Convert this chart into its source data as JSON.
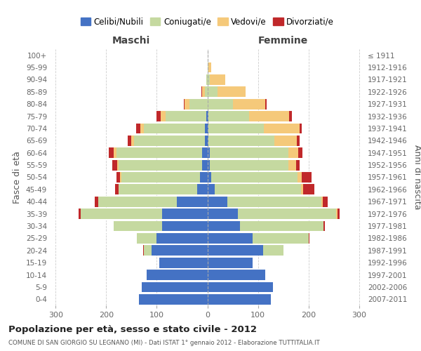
{
  "age_groups": [
    "0-4",
    "5-9",
    "10-14",
    "15-19",
    "20-24",
    "25-29",
    "30-34",
    "35-39",
    "40-44",
    "45-49",
    "50-54",
    "55-59",
    "60-64",
    "65-69",
    "70-74",
    "75-79",
    "80-84",
    "85-89",
    "90-94",
    "95-99",
    "100+"
  ],
  "birth_years": [
    "2007-2011",
    "2002-2006",
    "1997-2001",
    "1992-1996",
    "1987-1991",
    "1982-1986",
    "1977-1981",
    "1972-1976",
    "1967-1971",
    "1962-1966",
    "1957-1961",
    "1952-1956",
    "1947-1951",
    "1942-1946",
    "1937-1941",
    "1932-1936",
    "1927-1931",
    "1922-1926",
    "1917-1921",
    "1912-1916",
    "≤ 1911"
  ],
  "colors": {
    "celibe": "#4472c4",
    "coniugato": "#c5d9a0",
    "vedovo": "#f5c97a",
    "divorziato": "#c0282a"
  },
  "males": {
    "celibe": [
      135,
      130,
      120,
      95,
      110,
      100,
      90,
      90,
      60,
      20,
      15,
      10,
      10,
      5,
      5,
      2,
      0,
      0,
      0,
      0,
      0
    ],
    "coniugato": [
      0,
      0,
      0,
      0,
      15,
      40,
      95,
      160,
      155,
      155,
      155,
      165,
      170,
      140,
      120,
      80,
      35,
      5,
      2,
      0,
      0
    ],
    "vedovo": [
      0,
      0,
      0,
      0,
      0,
      0,
      0,
      0,
      0,
      0,
      2,
      3,
      5,
      5,
      8,
      10,
      10,
      5,
      0,
      0,
      0
    ],
    "divorziato": [
      0,
      0,
      0,
      0,
      2,
      0,
      0,
      5,
      8,
      8,
      8,
      10,
      10,
      8,
      8,
      8,
      2,
      2,
      0,
      0,
      0
    ]
  },
  "females": {
    "nubile": [
      125,
      130,
      115,
      90,
      110,
      90,
      65,
      60,
      40,
      15,
      8,
      5,
      5,
      2,
      2,
      2,
      0,
      0,
      0,
      0,
      0
    ],
    "coniugata": [
      0,
      0,
      0,
      0,
      40,
      110,
      165,
      195,
      185,
      170,
      170,
      155,
      155,
      130,
      110,
      80,
      50,
      20,
      5,
      2,
      0
    ],
    "vedova": [
      0,
      0,
      0,
      0,
      0,
      0,
      0,
      2,
      3,
      5,
      8,
      15,
      20,
      45,
      70,
      80,
      65,
      55,
      30,
      5,
      0
    ],
    "divorziata": [
      0,
      0,
      0,
      0,
      0,
      2,
      3,
      5,
      10,
      22,
      20,
      8,
      8,
      5,
      5,
      5,
      2,
      0,
      0,
      0,
      0
    ]
  },
  "xlim": 310,
  "title": "Popolazione per età, sesso e stato civile - 2012",
  "subtitle": "COMUNE DI SAN GIORGIO SU LEGNANO (MI) - Dati ISTAT 1° gennaio 2012 - Elaborazione TUTTITALIA.IT",
  "ylabel": "Fasce di età",
  "ylabel2": "Anni di nascita",
  "xlabel_maschi": "Maschi",
  "xlabel_femmine": "Femmine",
  "bg_color": "#ffffff",
  "grid_color": "#cccccc",
  "legend_labels": [
    "Celibi/Nubili",
    "Coniugati/e",
    "Vedovi/e",
    "Divorziati/e"
  ]
}
